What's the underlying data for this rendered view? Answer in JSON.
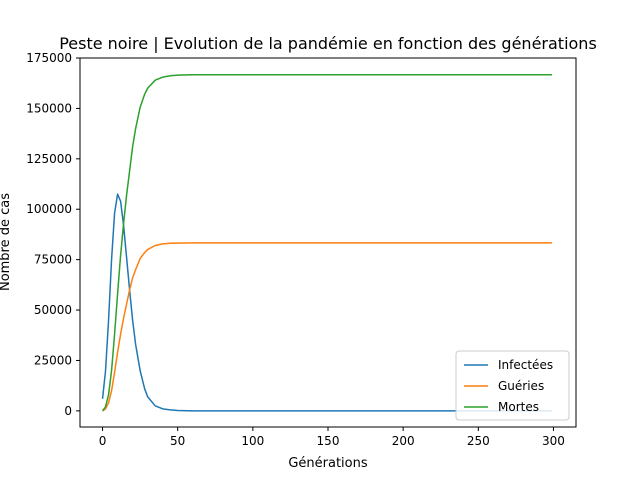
{
  "chart_data": {
    "type": "line",
    "title": "Peste noire | Evolution de la pandémie en fonction des générations",
    "xlabel": "Générations",
    "ylabel": "Nombre de cas",
    "xlim": [
      -15,
      315
    ],
    "ylim": [
      -8000,
      175000
    ],
    "xticks": [
      0,
      50,
      100,
      150,
      200,
      250,
      300
    ],
    "yticks": [
      0,
      25000,
      50000,
      75000,
      100000,
      125000,
      150000,
      175000
    ],
    "grid": false,
    "legend_position": "lower-right",
    "series": [
      {
        "name": "Infectées",
        "color": "#1f77b4",
        "x": [
          0,
          2,
          4,
          6,
          8,
          10,
          12,
          14,
          16,
          18,
          20,
          22,
          25,
          28,
          30,
          35,
          40,
          45,
          50,
          60,
          70,
          80,
          100,
          150,
          200,
          250,
          299
        ],
        "y": [
          6000,
          20000,
          45000,
          75000,
          98000,
          107500,
          104000,
          92000,
          76000,
          60000,
          45000,
          33000,
          20000,
          11000,
          7000,
          2500,
          1000,
          500,
          200,
          0,
          0,
          0,
          0,
          0,
          0,
          0,
          0
        ]
      },
      {
        "name": "Guéries",
        "color": "#ff7f0e",
        "x": [
          0,
          2,
          4,
          6,
          8,
          10,
          12,
          14,
          16,
          18,
          20,
          22,
          25,
          28,
          30,
          35,
          40,
          45,
          50,
          60,
          70,
          80,
          100,
          150,
          200,
          250,
          299
        ],
        "y": [
          0,
          1000,
          4000,
          10000,
          19000,
          29000,
          38000,
          46000,
          53000,
          60000,
          66000,
          70000,
          75500,
          78500,
          80000,
          82000,
          82800,
          83100,
          83200,
          83300,
          83300,
          83300,
          83300,
          83300,
          83300,
          83300,
          83300
        ]
      },
      {
        "name": "Mortes",
        "color": "#2ca02c",
        "x": [
          0,
          2,
          4,
          6,
          8,
          10,
          12,
          14,
          16,
          18,
          20,
          22,
          25,
          28,
          30,
          35,
          40,
          45,
          50,
          60,
          70,
          80,
          100,
          150,
          200,
          250,
          299
        ],
        "y": [
          0,
          2000,
          8000,
          20000,
          38000,
          58000,
          77000,
          93000,
          107000,
          119000,
          131000,
          140000,
          150500,
          157000,
          160000,
          164000,
          165500,
          166200,
          166500,
          166700,
          166700,
          166700,
          166700,
          166700,
          166700,
          166700,
          166700
        ]
      }
    ]
  }
}
